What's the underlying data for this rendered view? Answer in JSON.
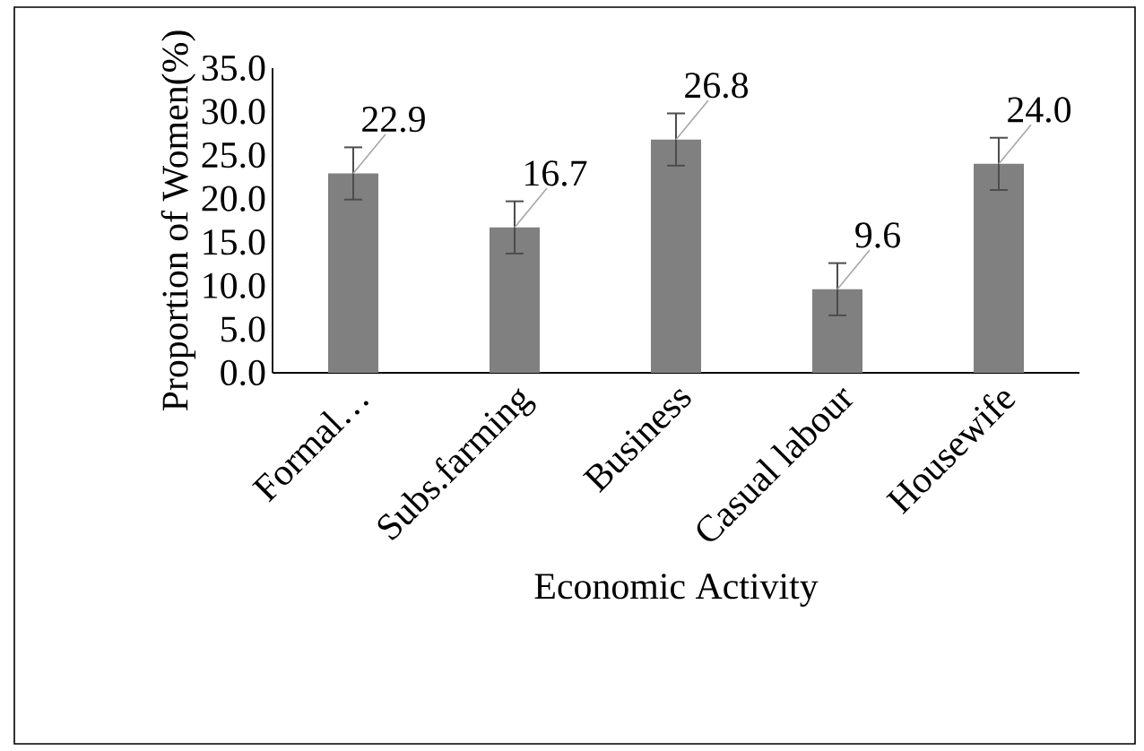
{
  "chart_data": {
    "type": "bar",
    "xlabel": "Economic Activity",
    "ylabel": "Proportion of Women(%)",
    "categories": [
      "Formal…",
      "Subs.farming",
      "Business",
      "Casual labour",
      "Housewife"
    ],
    "values": [
      22.9,
      16.7,
      26.8,
      9.6,
      24.0
    ],
    "errors": [
      3.0,
      3.0,
      3.0,
      3.0,
      3.0
    ],
    "value_labels": [
      "22.9",
      "16.7",
      "26.8",
      "9.6",
      "24.0"
    ],
    "color": "#808080",
    "grid": false,
    "ylim": [
      0,
      35
    ],
    "yticks": [
      {
        "value": 0,
        "label": "0.0"
      },
      {
        "value": 5,
        "label": "5.0"
      },
      {
        "value": 10,
        "label": "10.0"
      },
      {
        "value": 15,
        "label": "15.0"
      },
      {
        "value": 20,
        "label": "20.0"
      },
      {
        "value": 25,
        "label": "25.0"
      },
      {
        "value": 30,
        "label": "30.0"
      },
      {
        "value": 35,
        "label": "35.0"
      }
    ]
  }
}
